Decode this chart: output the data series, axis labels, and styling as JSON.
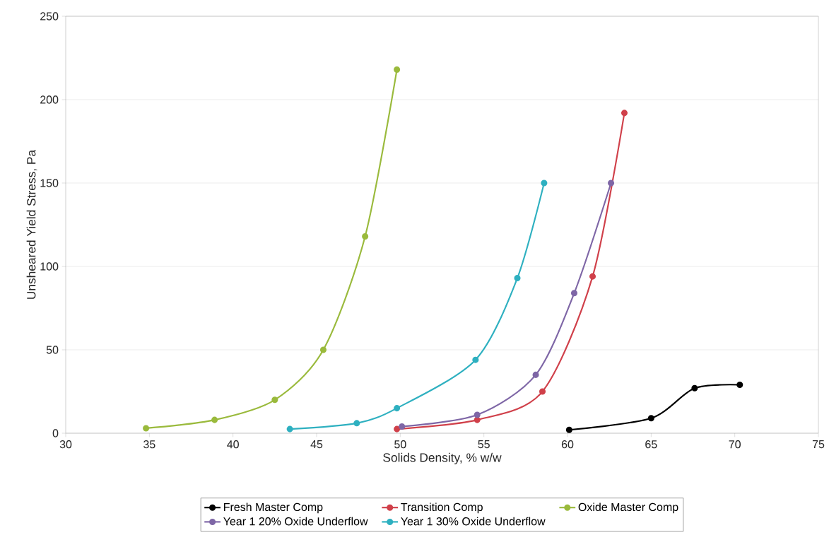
{
  "chart_data": {
    "type": "line",
    "xlabel": "Solids Density, % w/w",
    "ylabel": "Unsheared Yield Stress, Pa",
    "xlim": [
      30,
      75
    ],
    "xticks": [
      30,
      35,
      40,
      45,
      50,
      55,
      60,
      65,
      70,
      75
    ],
    "ylim": [
      0,
      250
    ],
    "yticks": [
      0,
      50,
      100,
      150,
      200,
      250
    ],
    "grid": "y",
    "legend": "bottom",
    "marker": "circle",
    "line_style": "solid",
    "series": [
      {
        "name": "Fresh Master Comp",
        "color": "#000000",
        "x": [
          60.1,
          65.0,
          67.6,
          70.3
        ],
        "values": [
          2,
          9,
          27,
          29
        ]
      },
      {
        "name": "Transition Comp",
        "color": "#d0404a",
        "x": [
          49.8,
          54.6,
          58.5,
          61.5,
          63.4
        ],
        "values": [
          2.5,
          8,
          25,
          94,
          192
        ]
      },
      {
        "name": "Oxide Master Comp",
        "color": "#9aba3c",
        "x": [
          34.8,
          38.9,
          42.5,
          45.4,
          47.9,
          49.8
        ],
        "values": [
          3,
          8,
          20,
          50,
          118,
          218
        ]
      },
      {
        "name": "Year 1 20% Oxide Underflow",
        "color": "#7e66a6",
        "x": [
          50.1,
          54.6,
          58.1,
          60.4,
          62.6
        ],
        "values": [
          4,
          11,
          35,
          84,
          150
        ]
      },
      {
        "name": "Year 1 30% Oxide Underflow",
        "color": "#2eb0c0",
        "x": [
          43.4,
          47.4,
          49.8,
          54.5,
          57.0,
          58.6
        ],
        "values": [
          2.5,
          6,
          15,
          44,
          93,
          150
        ]
      }
    ]
  }
}
